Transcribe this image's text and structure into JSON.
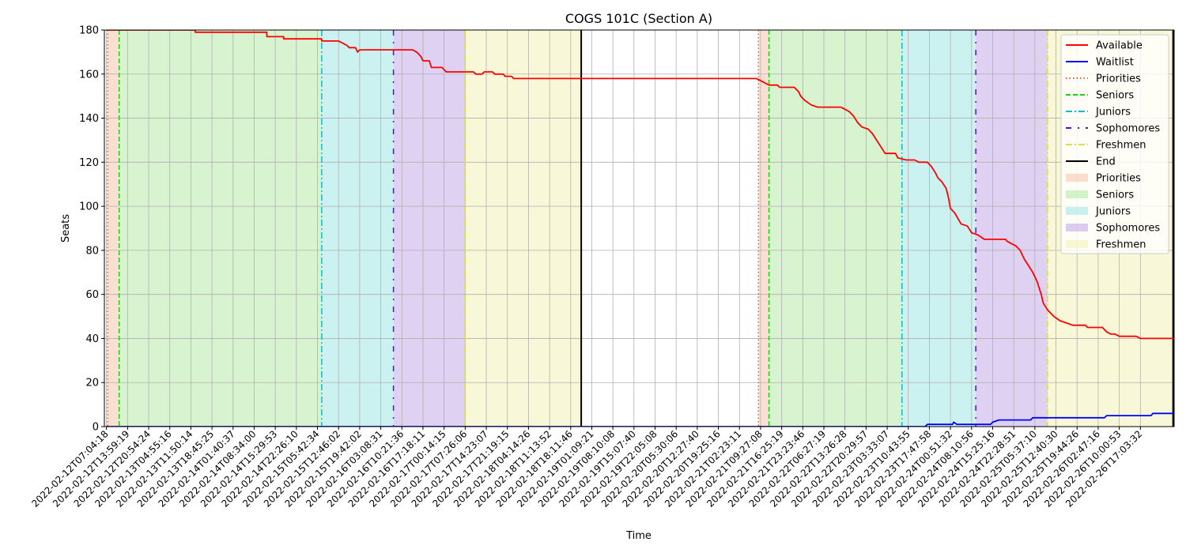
{
  "chart_data": {
    "type": "line",
    "title": "COGS 101C (Section A)",
    "xlabel": "Time",
    "ylabel": "Seats",
    "ylim": [
      0,
      180
    ],
    "yticks": [
      0,
      20,
      40,
      60,
      80,
      100,
      120,
      140,
      160,
      180
    ],
    "x_tick_labels": [
      "2022-02-12T07:04:18",
      "2022-02-12T13:59:19",
      "2022-02-12T20:54:24",
      "2022-02-13T04:55:16",
      "2022-02-13T11:50:14",
      "2022-02-13T18:45:25",
      "2022-02-14T01:40:37",
      "2022-02-14T08:34:00",
      "2022-02-14T15:29:53",
      "2022-02-14T22:26:10",
      "2022-02-15T05:42:34",
      "2022-02-15T12:46:02",
      "2022-02-15T19:42:02",
      "2022-02-16T03:08:31",
      "2022-02-16T10:21:36",
      "2022-02-16T17:18:11",
      "2022-02-17T00:14:15",
      "2022-02-17T07:26:06",
      "2022-02-17T14:23:07",
      "2022-02-17T21:19:15",
      "2022-02-18T04:14:26",
      "2022-02-18T11:13:52",
      "2022-02-18T18:11:46",
      "2022-02-19T01:09:21",
      "2022-02-19T08:10:08",
      "2022-02-19T15:07:40",
      "2022-02-19T22:05:08",
      "2022-02-20T05:30:06",
      "2022-02-20T12:27:40",
      "2022-02-20T19:25:16",
      "2022-02-21T02:23:11",
      "2022-02-21T09:27:08",
      "2022-02-21T16:25:19",
      "2022-02-21T23:23:46",
      "2022-02-22T06:27:19",
      "2022-02-22T13:26:28",
      "2022-02-22T20:29:57",
      "2022-02-23T03:33:07",
      "2022-02-23T10:43:55",
      "2022-02-23T17:47:58",
      "2022-02-24T00:51:32",
      "2022-02-24T08:10:56",
      "2022-02-24T15:25:16",
      "2022-02-24T22:28:51",
      "2022-02-25T05:37:10",
      "2022-02-25T12:40:30",
      "2022-02-25T19:44:26",
      "2022-02-26T02:47:16",
      "2022-02-26T10:00:53",
      "2022-02-26T17:03:32"
    ],
    "x_domain": [
      -0.1,
      50.6
    ],
    "series": [
      {
        "name": "Available",
        "color": "#ff0000",
        "points": [
          [
            0,
            180
          ],
          [
            4.2,
            180
          ],
          [
            4.2,
            179
          ],
          [
            7.6,
            179
          ],
          [
            7.6,
            177
          ],
          [
            8.4,
            177
          ],
          [
            8.4,
            176
          ],
          [
            10.2,
            176
          ],
          [
            10.2,
            175
          ],
          [
            11.0,
            175
          ],
          [
            11.2,
            174
          ],
          [
            11.4,
            173
          ],
          [
            11.5,
            172
          ],
          [
            11.8,
            172
          ],
          [
            11.9,
            170
          ],
          [
            12.0,
            171
          ],
          [
            14.5,
            171
          ],
          [
            14.7,
            170
          ],
          [
            14.9,
            168
          ],
          [
            15.0,
            166
          ],
          [
            15.3,
            166
          ],
          [
            15.4,
            163
          ],
          [
            15.9,
            163
          ],
          [
            16.1,
            161
          ],
          [
            17.4,
            161
          ],
          [
            17.5,
            160
          ],
          [
            17.8,
            160
          ],
          [
            17.9,
            161
          ],
          [
            18.3,
            161
          ],
          [
            18.4,
            160
          ],
          [
            18.8,
            160
          ],
          [
            18.9,
            159
          ],
          [
            19.2,
            159
          ],
          [
            19.3,
            158
          ],
          [
            30.8,
            158
          ],
          [
            31.0,
            157
          ],
          [
            31.2,
            156
          ],
          [
            31.4,
            155
          ],
          [
            31.8,
            155
          ],
          [
            31.9,
            154
          ],
          [
            32.6,
            154
          ],
          [
            32.8,
            152
          ],
          [
            32.9,
            150
          ],
          [
            33.1,
            148
          ],
          [
            33.4,
            146
          ],
          [
            33.7,
            145
          ],
          [
            34.8,
            145
          ],
          [
            35.2,
            143
          ],
          [
            35.4,
            141
          ],
          [
            35.6,
            138
          ],
          [
            35.8,
            136
          ],
          [
            36.1,
            135
          ],
          [
            36.3,
            133
          ],
          [
            36.5,
            130
          ],
          [
            36.7,
            127
          ],
          [
            36.9,
            124
          ],
          [
            37.4,
            124
          ],
          [
            37.5,
            122
          ],
          [
            37.9,
            121
          ],
          [
            38.3,
            121
          ],
          [
            38.5,
            120
          ],
          [
            38.9,
            120
          ],
          [
            39.1,
            118
          ],
          [
            39.3,
            115
          ],
          [
            39.4,
            113
          ],
          [
            39.6,
            111
          ],
          [
            39.8,
            108
          ],
          [
            39.9,
            104
          ],
          [
            40.0,
            99
          ],
          [
            40.2,
            97
          ],
          [
            40.5,
            92
          ],
          [
            40.8,
            91
          ],
          [
            41.0,
            88
          ],
          [
            41.3,
            87
          ],
          [
            41.6,
            85
          ],
          [
            42.6,
            85
          ],
          [
            42.7,
            84
          ],
          [
            43.1,
            82
          ],
          [
            43.3,
            80
          ],
          [
            43.5,
            76
          ],
          [
            43.7,
            73
          ],
          [
            43.9,
            70
          ],
          [
            44.1,
            66
          ],
          [
            44.3,
            60
          ],
          [
            44.4,
            56
          ],
          [
            44.6,
            53
          ],
          [
            44.9,
            50
          ],
          [
            45.2,
            48
          ],
          [
            45.5,
            47
          ],
          [
            45.8,
            46
          ],
          [
            46.4,
            46
          ],
          [
            46.5,
            45
          ],
          [
            47.2,
            45
          ],
          [
            47.4,
            43
          ],
          [
            47.6,
            42
          ],
          [
            47.8,
            42
          ],
          [
            48.0,
            41
          ],
          [
            48.8,
            41
          ],
          [
            49.0,
            40
          ],
          [
            50.8,
            40
          ],
          [
            51.0,
            39
          ],
          [
            51.6,
            39
          ],
          [
            51.8,
            37
          ],
          [
            52.2,
            36
          ],
          [
            52.5,
            35
          ],
          [
            52.8,
            35
          ]
        ]
      },
      {
        "name": "Waitlist",
        "color": "#0000ff",
        "points": [
          [
            0,
            0
          ],
          [
            38.8,
            0
          ],
          [
            38.9,
            1
          ],
          [
            40.1,
            1
          ],
          [
            40.15,
            2
          ],
          [
            40.3,
            1
          ],
          [
            41.9,
            1
          ],
          [
            42.0,
            2
          ],
          [
            42.3,
            3
          ],
          [
            43.8,
            3
          ],
          [
            43.9,
            4
          ],
          [
            45.6,
            4
          ],
          [
            45.7,
            4
          ],
          [
            47.3,
            4
          ],
          [
            47.4,
            5
          ],
          [
            49.5,
            5
          ],
          [
            49.6,
            6
          ],
          [
            52.8,
            6
          ]
        ]
      }
    ],
    "phases": [
      {
        "name": "Priorities",
        "fill": "#f6c6ad",
        "line_color": "#e8602a",
        "line_style": "dotted",
        "ranges": [
          [
            0.05,
            0.6
          ],
          [
            30.9,
            31.4
          ]
        ]
      },
      {
        "name": "Seniors",
        "fill": "#b8eaa8",
        "line_color": "#22cc11",
        "line_style": "dashed",
        "ranges": [
          [
            0.6,
            10.2
          ],
          [
            31.4,
            37.7
          ]
        ]
      },
      {
        "name": "Juniors",
        "fill": "#a3e6e6",
        "line_color": "#11bbcc",
        "line_style": "dashdot",
        "ranges": [
          [
            10.2,
            13.6
          ],
          [
            37.7,
            41.2
          ]
        ]
      },
      {
        "name": "Sophomores",
        "fill": "#c4ace8",
        "line_color": "#5511cc",
        "line_style": "loosely-dashdot",
        "ranges": [
          [
            13.6,
            17.0
          ],
          [
            41.2,
            44.6
          ]
        ]
      },
      {
        "name": "Freshmen",
        "fill": "#f2f2b8",
        "line_color": "#dddd44",
        "line_style": "dashdot",
        "ranges": [
          [
            17.0,
            22.5
          ],
          [
            44.6,
            50.55
          ]
        ]
      }
    ],
    "end_markers": [
      22.5,
      50.55
    ],
    "end_color": "#000000",
    "grid": true,
    "legend_position": "top-right",
    "legend": [
      {
        "label": "Available",
        "kind": "line",
        "color": "#ff0000",
        "style": "solid"
      },
      {
        "label": "Waitlist",
        "kind": "line",
        "color": "#0000ff",
        "style": "solid"
      },
      {
        "label": "Priorities",
        "kind": "line",
        "color": "#e8602a",
        "style": "dotted"
      },
      {
        "label": "Seniors",
        "kind": "line",
        "color": "#22cc11",
        "style": "dashed"
      },
      {
        "label": "Juniors",
        "kind": "line",
        "color": "#11bbcc",
        "style": "dashdot"
      },
      {
        "label": "Sophomores",
        "kind": "line",
        "color": "#5511cc",
        "style": "loosely-dashdot"
      },
      {
        "label": "Freshmen",
        "kind": "line",
        "color": "#dddd44",
        "style": "dashdot"
      },
      {
        "label": "End",
        "kind": "line",
        "color": "#000000",
        "style": "solid"
      },
      {
        "label": "Priorities",
        "kind": "patch",
        "color": "#f6c6ad"
      },
      {
        "label": "Seniors",
        "kind": "patch",
        "color": "#b8eaa8"
      },
      {
        "label": "Juniors",
        "kind": "patch",
        "color": "#a3e6e6"
      },
      {
        "label": "Sophomores",
        "kind": "patch",
        "color": "#c4ace8"
      },
      {
        "label": "Freshmen",
        "kind": "patch",
        "color": "#f2f2b8"
      }
    ]
  }
}
